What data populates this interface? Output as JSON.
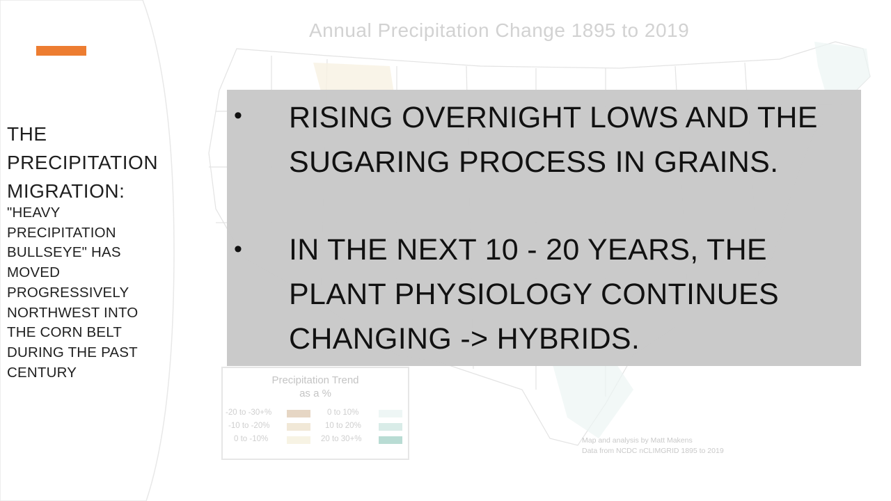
{
  "slide": {
    "sidebar": {
      "heading": [
        "THE",
        "PRECIPITATION",
        "MIGRATION:"
      ],
      "subheading": [
        "\"HEAVY",
        "PRECIPITATION",
        "BULLSEYE\" HAS",
        "MOVED",
        "PROGRESSIVELY",
        "NORTHWEST INTO",
        "THE CORN BELT",
        "DURING THE PAST",
        "CENTURY"
      ]
    },
    "callout": {
      "bullets": [
        {
          "lines": [
            "RISING OVERNIGHT LOWS AND THE",
            "SUGARING PROCESS IN GRAINS."
          ]
        },
        {
          "lines": [
            "IN THE NEXT 10 - 20 YEARS, THE",
            "PLANT PHYSIOLOGY CONTINUES",
            "CHANGING -> HYBRIDS."
          ]
        }
      ],
      "bullet_glyph": "•"
    },
    "map": {
      "title": "Annual Precipitation Change 1895 to 2019",
      "legend": {
        "title_line1": "Precipitation Trend",
        "title_line2": "as a %",
        "items": [
          {
            "label": "-20 to -30+%",
            "color": "#e6d6c4"
          },
          {
            "label": "-10 to -20%",
            "color": "#f1e8d7"
          },
          {
            "label": "0 to -10%",
            "color": "#f7f3e4"
          },
          {
            "label": "0 to 10%",
            "color": "#eef6f5"
          },
          {
            "label": "10 to 20%",
            "color": "#d9ece8"
          },
          {
            "label": "20 to 30+%",
            "color": "#b9dcd4"
          }
        ]
      },
      "credit_line1": "Map and analysis by Matt Makens",
      "credit_line2": "Data from NCDC nCLIMGRID 1895 to 2019"
    },
    "colors": {
      "accent": "#ed7d31",
      "callout_bg": "#c8c8c8",
      "text": "#111111"
    }
  }
}
